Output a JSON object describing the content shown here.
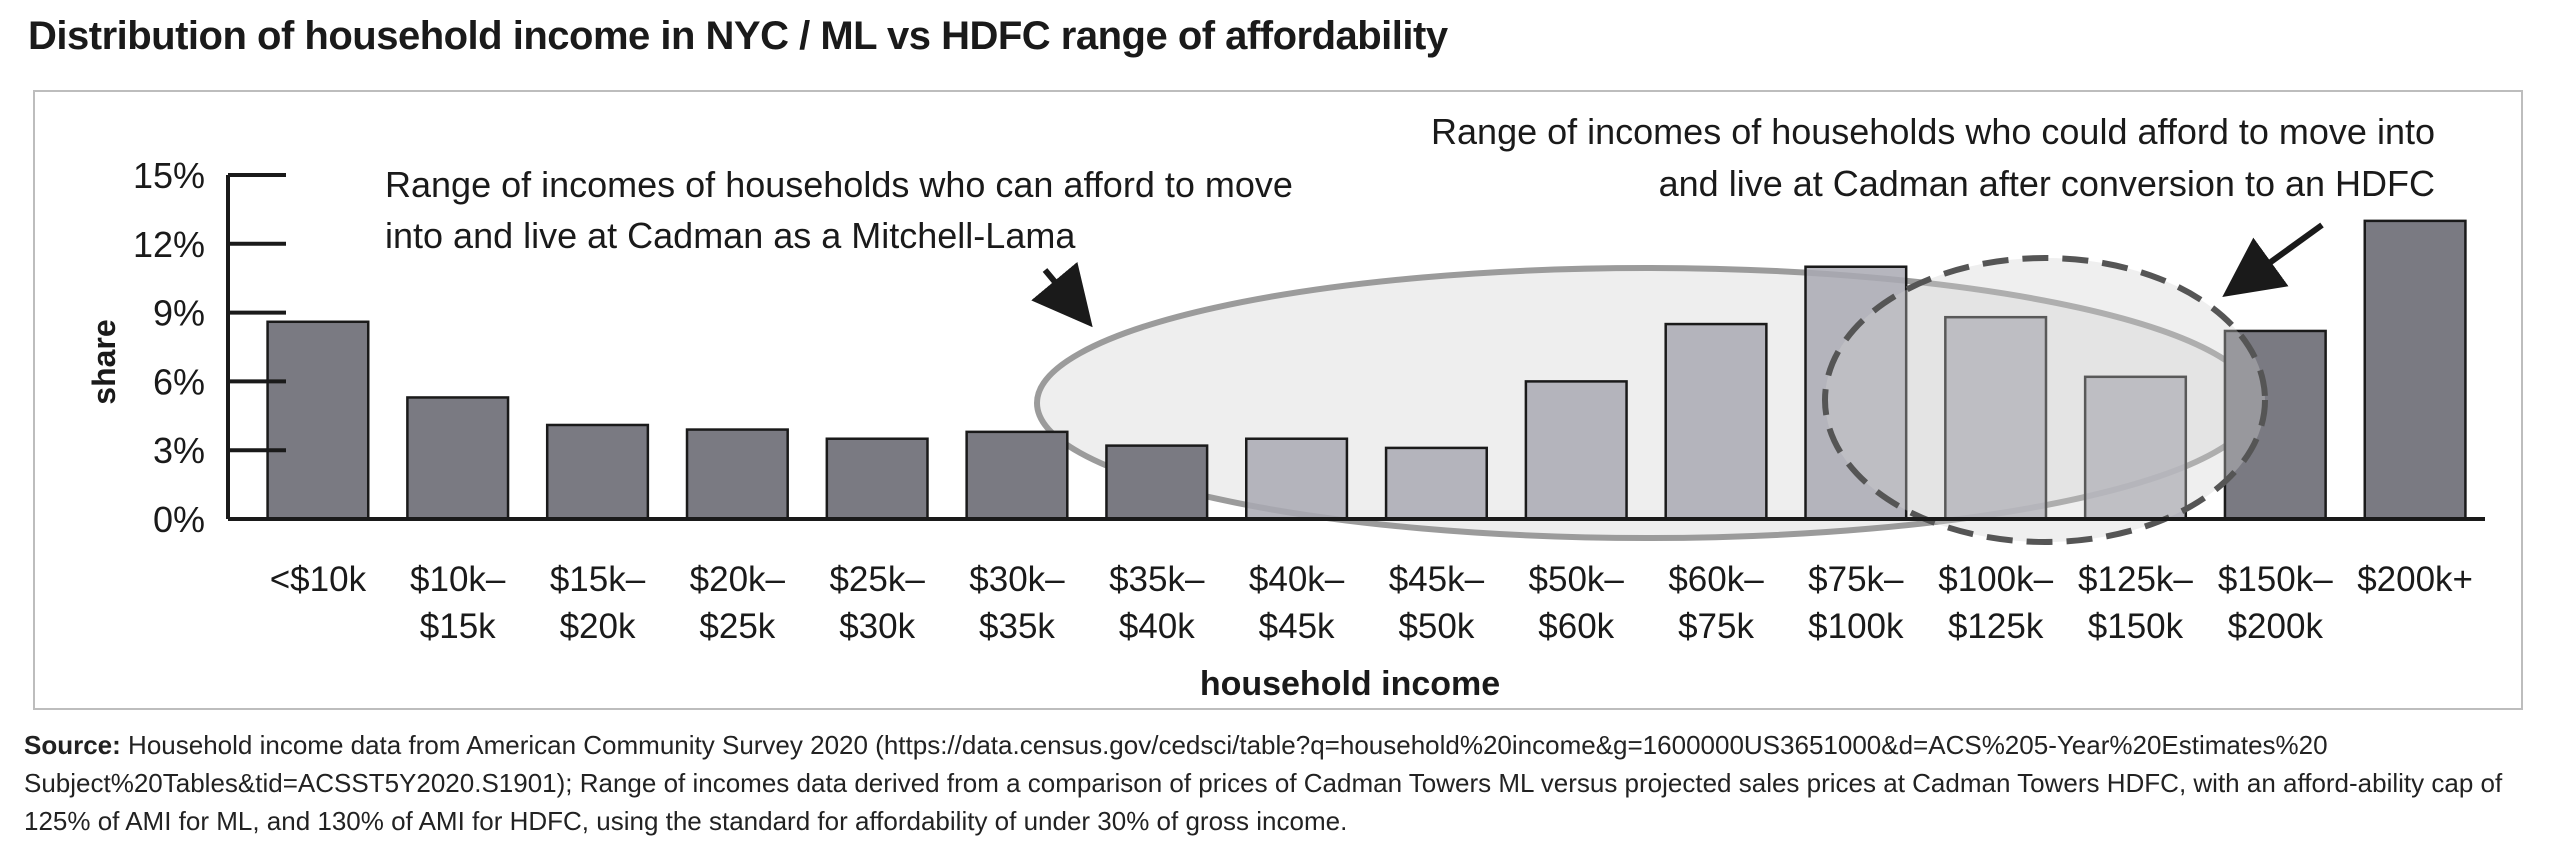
{
  "title": "Distribution of household income in NYC / ML vs HDFC range of affordability",
  "chart_data": {
    "type": "bar",
    "categories": [
      [
        "<$10k"
      ],
      [
        "$10k–",
        "$15k"
      ],
      [
        "$15k–",
        "$20k"
      ],
      [
        "$20k–",
        "$25k"
      ],
      [
        "$25k–",
        "$30k"
      ],
      [
        "$30k–",
        "$35k"
      ],
      [
        "$35k–",
        "$40k"
      ],
      [
        "$40k–",
        "$45k"
      ],
      [
        "$45k–",
        "$50k"
      ],
      [
        "$50k–",
        "$60k"
      ],
      [
        "$60k–",
        "$75k"
      ],
      [
        "$75k–",
        "$100k"
      ],
      [
        "$100k–",
        "$125k"
      ],
      [
        "$125k–",
        "$150k"
      ],
      [
        "$150k–",
        "$200k"
      ],
      [
        "$200k+"
      ]
    ],
    "values": [
      8.6,
      5.3,
      4.1,
      3.9,
      3.5,
      3.8,
      3.2,
      3.5,
      3.1,
      6.0,
      8.5,
      11.0,
      8.8,
      6.2,
      8.2,
      13.0
    ],
    "highlighted_range": [
      7,
      13
    ],
    "ylim": [
      0,
      15
    ],
    "yticks": [
      "0%",
      "3%",
      "6%",
      "9%",
      "12%",
      "15%"
    ],
    "ytick_values": [
      0,
      3,
      6,
      9,
      12,
      15
    ],
    "ylabel": "share",
    "xlabel": "household income",
    "annotations": {
      "ml": [
        "Range of incomes of households who can afford to move",
        "into and live at Cadman as a Mitchell-Lama"
      ],
      "hdfc": [
        "Range of incomes of households who could afford to move into",
        "and live at Cadman after conversion to an HDFC"
      ]
    },
    "colors": {
      "bar": "#7a7a82",
      "bar_highlight": "#a9a9b3",
      "ellipse_fill": "#e6e6e6",
      "ellipse_stroke": "#9a9a9a",
      "dashed_stroke": "#555555"
    }
  },
  "source": {
    "label": "Source:",
    "text": "Household income data from American Community Survey 2020 (https://data.census.gov/cedsci/table?q=household%20income&g=1600000US3651000&d=ACS%205-Year%20Estimates%20 Subject%20Tables&tid=ACSST5Y2020.S1901); Range of incomes data derived from a comparison of prices of Cadman Towers ML versus projected sales prices at Cadman Towers HDFC, with an afford-ability cap of 125% of AMI for ML, and 130% of AMI for HDFC, using the standard for affordability of under 30% of gross income."
  }
}
